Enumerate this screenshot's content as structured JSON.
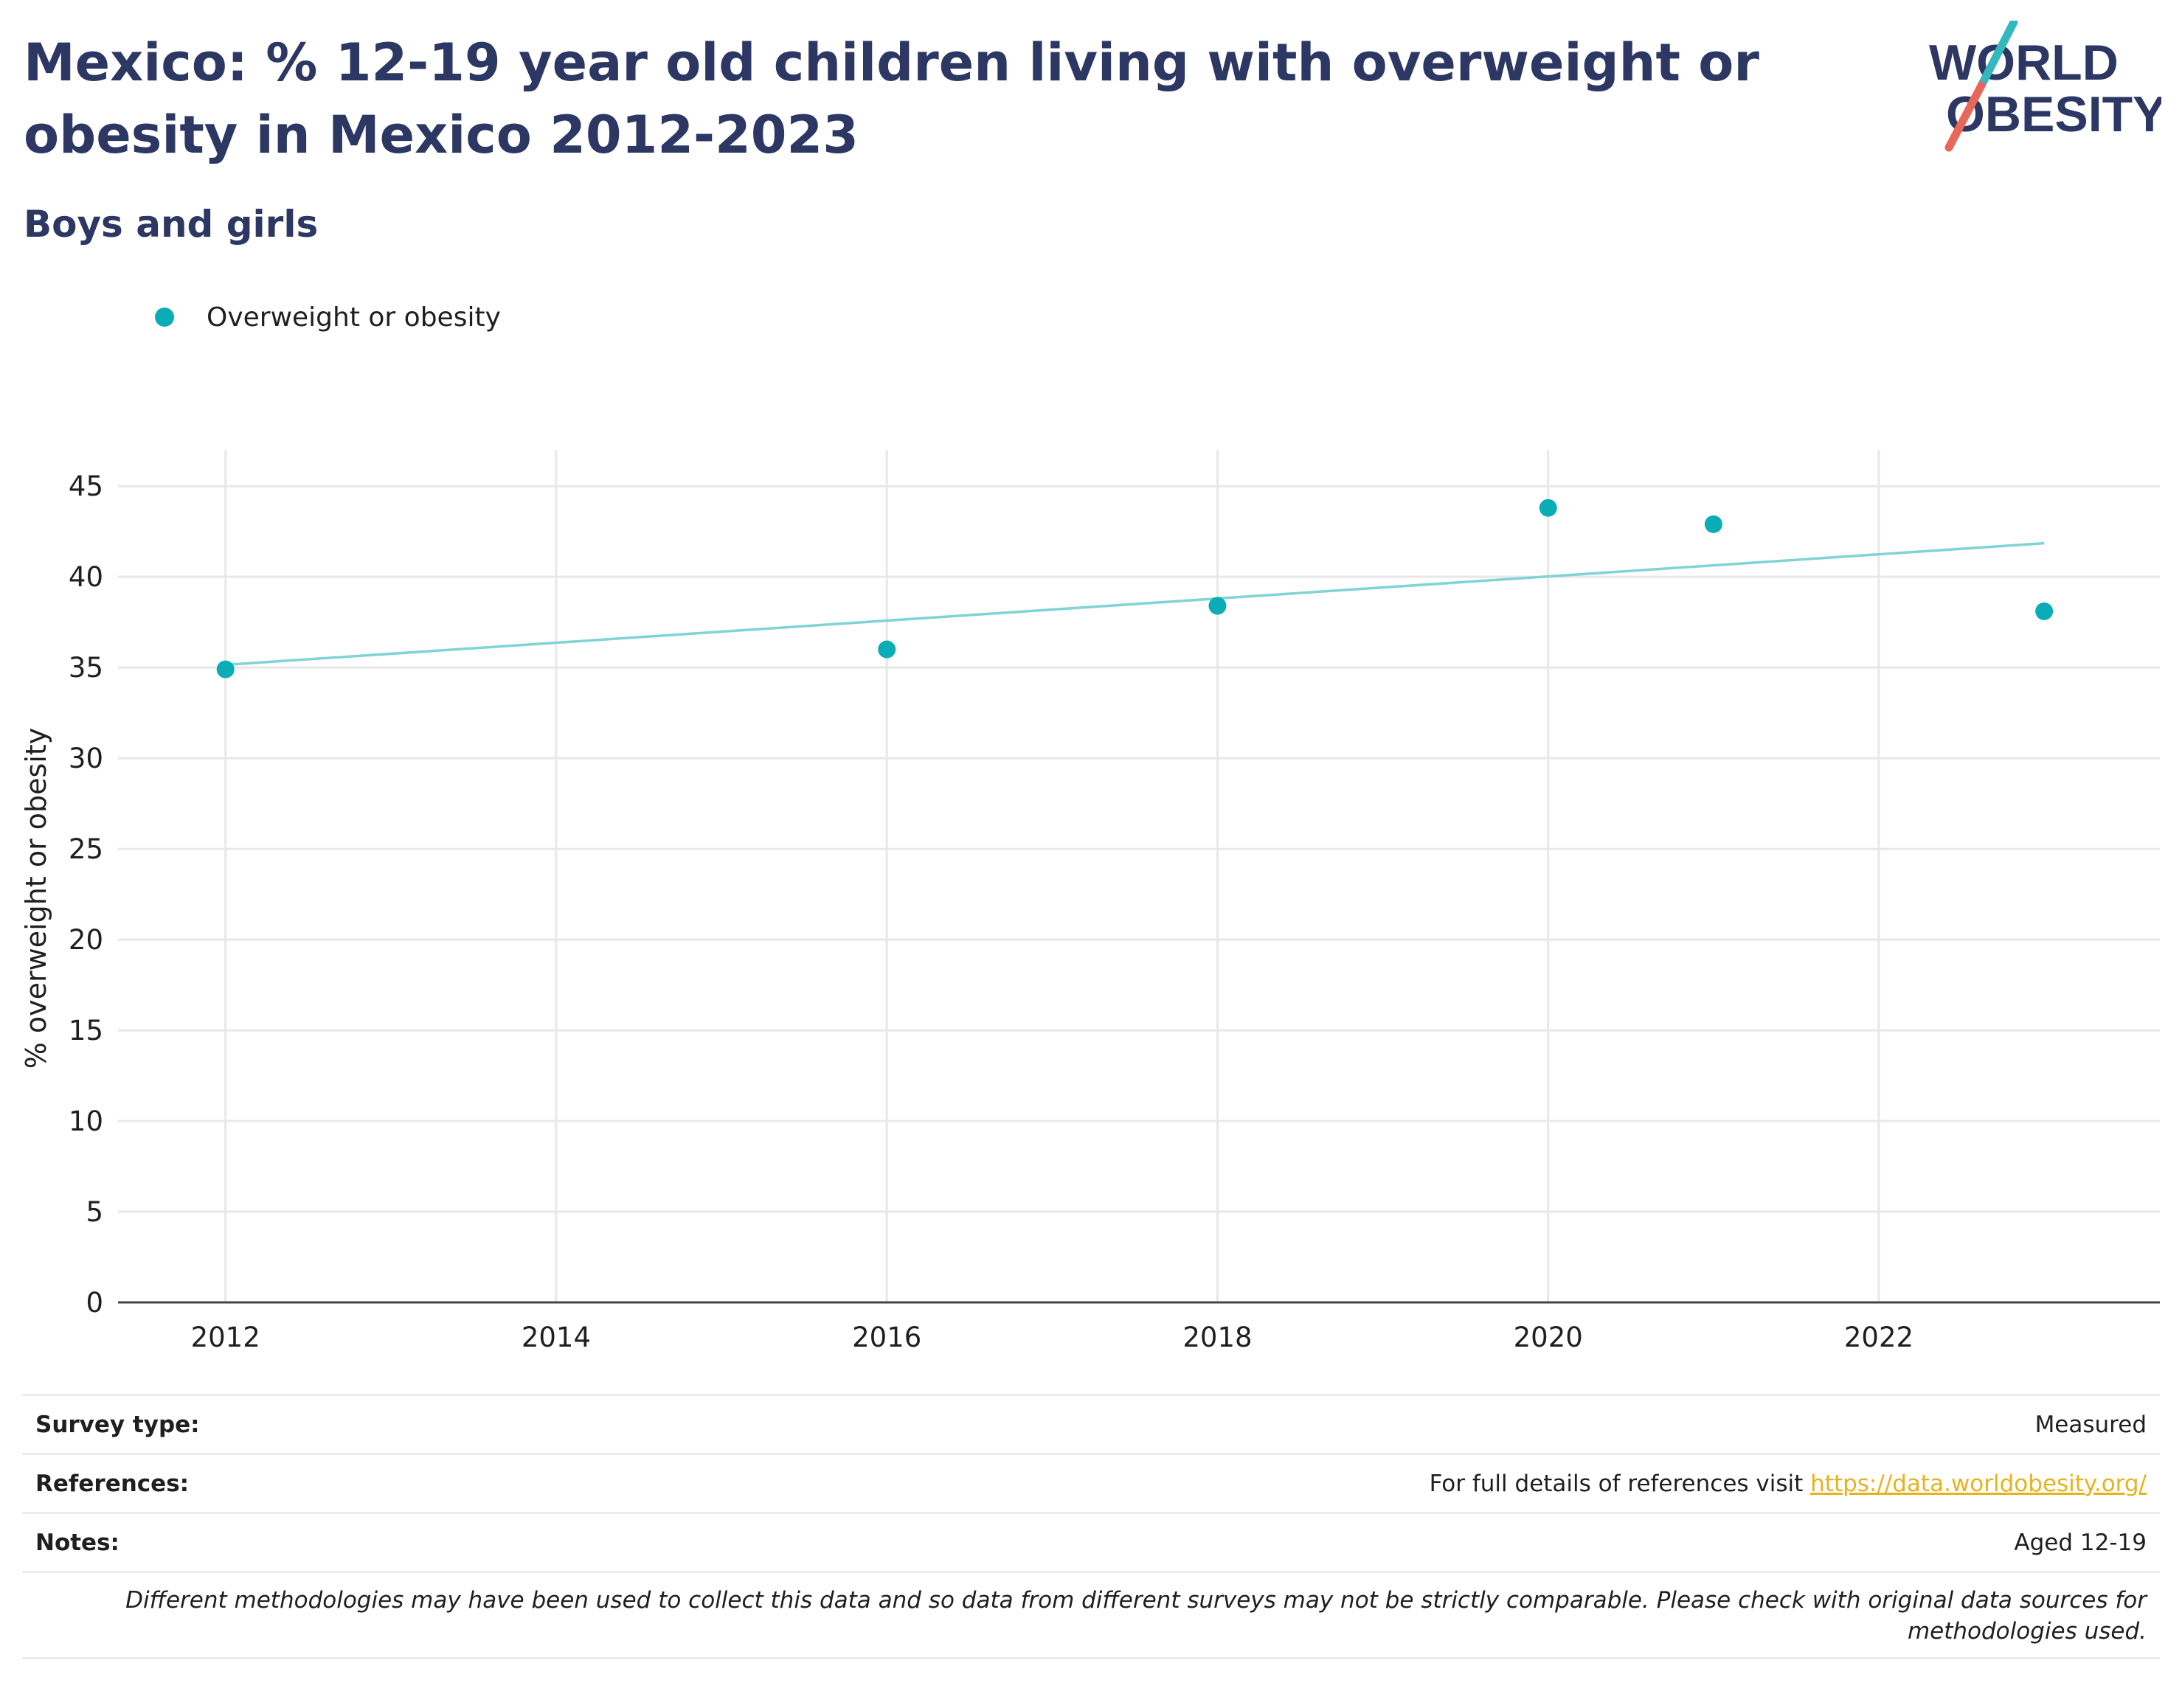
{
  "header": {
    "title": "Mexico: % 12-19 year old children living with overweight or obesity in Mexico 2012-2023",
    "subtitle": "Boys and girls"
  },
  "logo": {
    "line1": "WORLD",
    "line2": "OBESITY",
    "color_text": "#2c3763",
    "color_teal": "#35b8bd",
    "color_red": "#e8675a"
  },
  "colors": {
    "marker": "#0aacb6",
    "trend": "#7fd4d6",
    "grid": "#e8e8e8",
    "axis": "#444444"
  },
  "chart_data": {
    "type": "scatter",
    "title": "",
    "xlabel": "",
    "ylabel": "% overweight or obesity",
    "xlim": [
      2011.35,
      2023.7
    ],
    "ylim": [
      0,
      47
    ],
    "x_ticks": [
      2012,
      2014,
      2016,
      2018,
      2020,
      2022
    ],
    "y_ticks": [
      0,
      5,
      10,
      15,
      20,
      25,
      30,
      35,
      40,
      45
    ],
    "grid": true,
    "legend_position": "top-left",
    "series": [
      {
        "name": "Overweight or obesity",
        "x": [
          2012,
          2016,
          2018,
          2020,
          2021,
          2023
        ],
        "y": [
          34.9,
          36.0,
          38.4,
          43.8,
          42.9,
          38.1
        ]
      }
    ],
    "trendline": {
      "x": [
        2012,
        2023
      ],
      "y": [
        35.15,
        41.85
      ]
    }
  },
  "footer": {
    "rows": [
      {
        "label": "Survey type:",
        "value": "Measured"
      },
      {
        "label": "References:",
        "value": "For full details of references visit ",
        "link": "https://data.worldobesity.org/"
      },
      {
        "label": "Notes:",
        "value": "Aged 12-19"
      }
    ],
    "disclaimer": "Different methodologies may have been used to collect this data and so data from different surveys may not be strictly comparable. Please check with original data sources for methodologies used."
  }
}
